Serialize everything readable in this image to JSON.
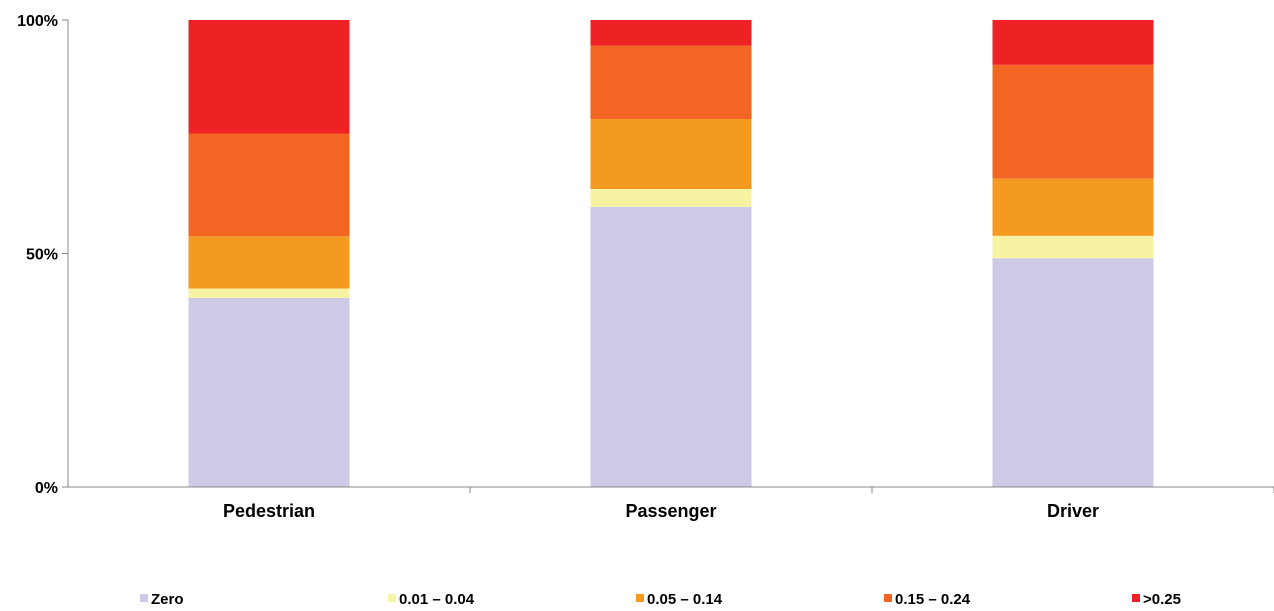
{
  "chart_data": {
    "type": "bar",
    "stacked": true,
    "normalized_percent": true,
    "categories": [
      "Pedestrian",
      "Passenger",
      "Driver"
    ],
    "series": [
      {
        "name": "Zero",
        "color": "#cccae4",
        "values": [
          40.5,
          60.0,
          49.0
        ]
      },
      {
        "name": "0.01 – 0.04",
        "color": "#f7f3a3",
        "values": [
          2.0,
          3.8,
          4.8
        ]
      },
      {
        "name": "0.05 – 0.14",
        "color": "#f59a20",
        "values": [
          11.2,
          15.0,
          12.2
        ]
      },
      {
        "name": "0.15 – 0.24",
        "color": "#f26522",
        "values": [
          22.0,
          15.7,
          24.4
        ]
      },
      {
        "name": ">0.25",
        "color": "#ee2124",
        "values": [
          24.3,
          5.5,
          9.6
        ]
      }
    ],
    "yticks": [
      "0%",
      "50%",
      "100%"
    ],
    "ylim": [
      0,
      100
    ],
    "title": "",
    "xlabel": "",
    "ylabel": "",
    "legend_position": "bottom",
    "grid": false
  }
}
